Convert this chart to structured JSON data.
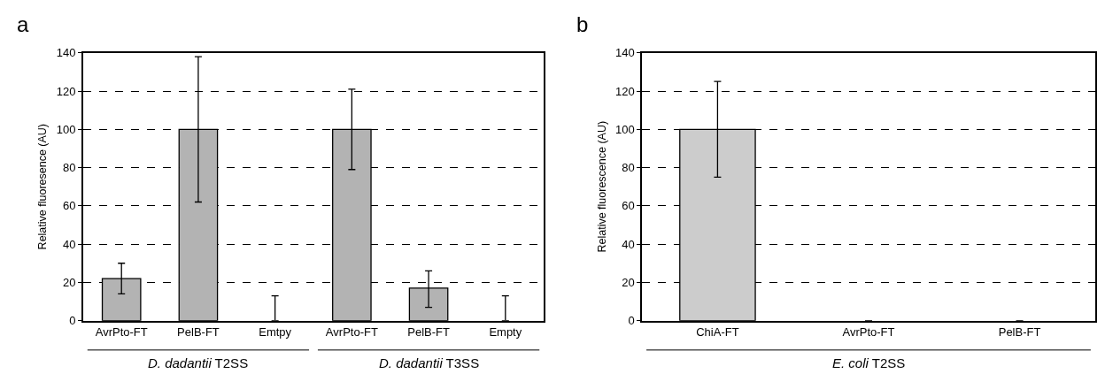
{
  "chart_data": [
    {
      "type": "bar",
      "title": "a",
      "ylabel": "Relative fluoresence (AU)",
      "categories": [
        "AvrPto-FT",
        "PelB-FT",
        "Emtpy",
        "AvrPto-FT",
        "PelB-FT",
        "Empty"
      ],
      "values": [
        22,
        100,
        0,
        100,
        17,
        0
      ],
      "color": "#b3b3b3",
      "errors": [
        [
          14,
          30
        ],
        [
          62,
          138
        ],
        [
          0,
          13
        ],
        [
          79,
          121
        ],
        [
          7,
          26
        ],
        [
          0,
          13
        ]
      ],
      "annotations": [
        "D. dadantii T2SS",
        "D. dadantii T3SS"
      ],
      "ylim": [
        0,
        140
      ],
      "yticks": [
        0,
        20,
        40,
        60,
        80,
        100,
        120,
        140
      ],
      "grid": "y",
      "line_style": "dashed"
    },
    {
      "type": "bar",
      "title": "b",
      "ylabel": "Relative fluorescence (AU)",
      "categories": [
        "ChiA-FT",
        "AvrPto-FT",
        "PelB-FT"
      ],
      "values": [
        100,
        0,
        0
      ],
      "color": "#cccccc",
      "errors": [
        [
          75,
          125
        ],
        null,
        null
      ],
      "annotations": [
        "E. coli T2SS"
      ],
      "ylim": [
        0,
        140
      ],
      "yticks": [
        0,
        20,
        40,
        60,
        80,
        100,
        120,
        140
      ],
      "grid": "y",
      "line_style": "dashed"
    }
  ]
}
